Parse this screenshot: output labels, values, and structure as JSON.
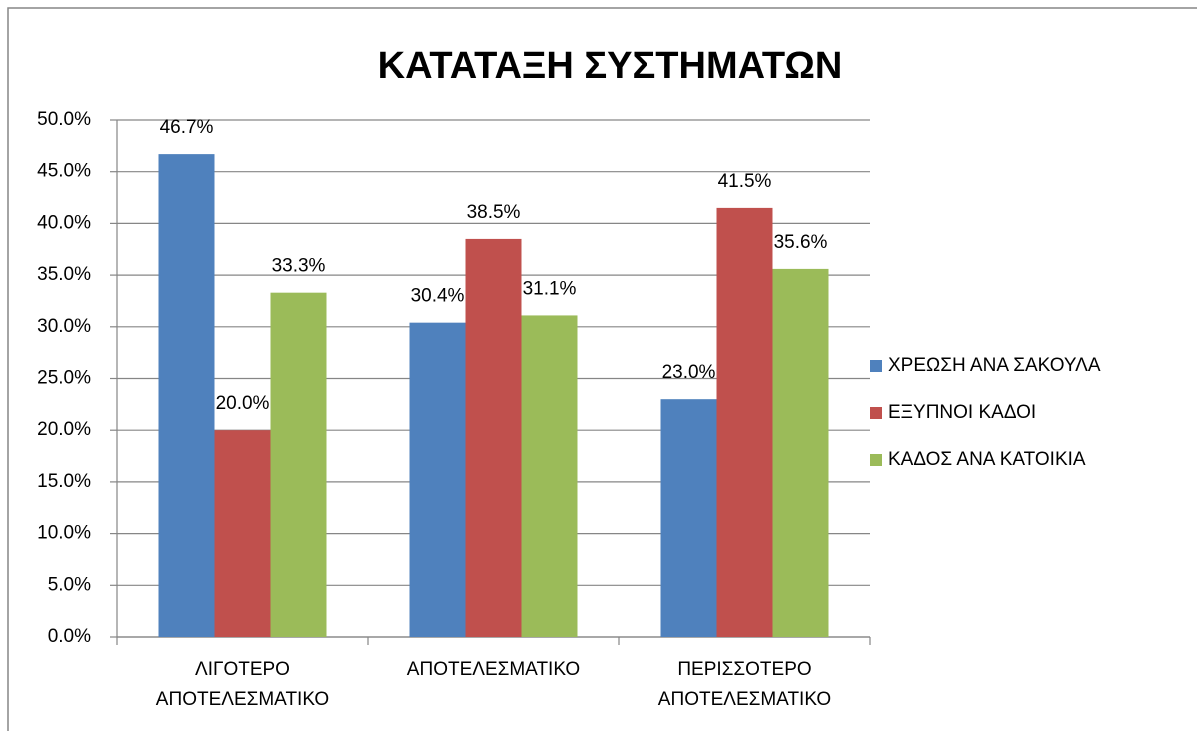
{
  "chart_data": {
    "type": "bar",
    "title": "ΚΑΤΑΤΑΞΗ ΣΥΣΤΗΜΑΤΩΝ",
    "categories": [
      "ΛΙΓΟΤΕΡΟ ΑΠΟΤΕΛΕΣΜΑΤΙΚΟ",
      "ΑΠΟΤΕΛΕΣΜΑΤΙΚΟ",
      "ΠΕΡΙΣΣΟΤΕΡΟ ΑΠΟΤΕΛΕΣΜΑΤΙΚΟ"
    ],
    "series": [
      {
        "name": "ΧΡΕΩΣΗ ΑΝΑ ΣΑΚΟΥΛΑ",
        "color": "#4f81bd",
        "values": [
          46.7,
          30.4,
          23.0
        ],
        "value_labels": [
          "46.7%",
          "30.4%",
          "23.0%"
        ]
      },
      {
        "name": "ΕΞΥΠΝΟΙ ΚΑΔΟΙ",
        "color": "#c0504d",
        "values": [
          20.0,
          38.5,
          41.5
        ],
        "value_labels": [
          "20.0%",
          "38.5%",
          "41.5%"
        ]
      },
      {
        "name": "ΚΑΔΟΣ ΑΝΑ ΚΑΤΟΙΚΙΑ",
        "color": "#9bbb59",
        "values": [
          33.3,
          31.1,
          35.6
        ],
        "value_labels": [
          "33.3%",
          "31.1%",
          "35.6%"
        ]
      }
    ],
    "ylim": [
      0,
      50
    ],
    "yticks": [
      {
        "value": 0,
        "label": "0.0%"
      },
      {
        "value": 5,
        "label": "5.0%"
      },
      {
        "value": 10,
        "label": "10.0%"
      },
      {
        "value": 15,
        "label": "15.0%"
      },
      {
        "value": 20,
        "label": "20.0%"
      },
      {
        "value": 25,
        "label": "25.0%"
      },
      {
        "value": 30,
        "label": "30.0%"
      },
      {
        "value": 35,
        "label": "35.0%"
      },
      {
        "value": 40,
        "label": "40.0%"
      },
      {
        "value": 45,
        "label": "45.0%"
      },
      {
        "value": 50,
        "label": "50.0%"
      }
    ],
    "grid": true,
    "legend": "right"
  }
}
